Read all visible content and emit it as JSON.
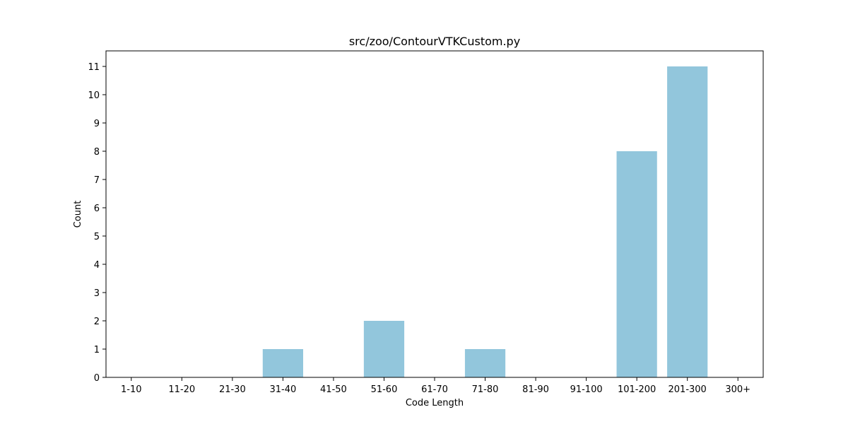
{
  "chart_data": {
    "type": "bar",
    "title": "src/zoo/ContourVTKCustom.py",
    "xlabel": "Code Length",
    "ylabel": "Count",
    "categories": [
      "1-10",
      "11-20",
      "21-30",
      "31-40",
      "41-50",
      "51-60",
      "61-70",
      "71-80",
      "81-90",
      "91-100",
      "101-200",
      "201-300",
      "300+"
    ],
    "values": [
      0,
      0,
      0,
      1,
      0,
      2,
      0,
      1,
      0,
      0,
      8,
      11,
      0
    ],
    "ylim": [
      0,
      11.55
    ],
    "yticks": [
      "0",
      "1",
      "2",
      "3",
      "4",
      "5",
      "6",
      "7",
      "8",
      "9",
      "10",
      "11"
    ],
    "bar_color": "#92c6dc",
    "grid": false,
    "legend": "none"
  }
}
